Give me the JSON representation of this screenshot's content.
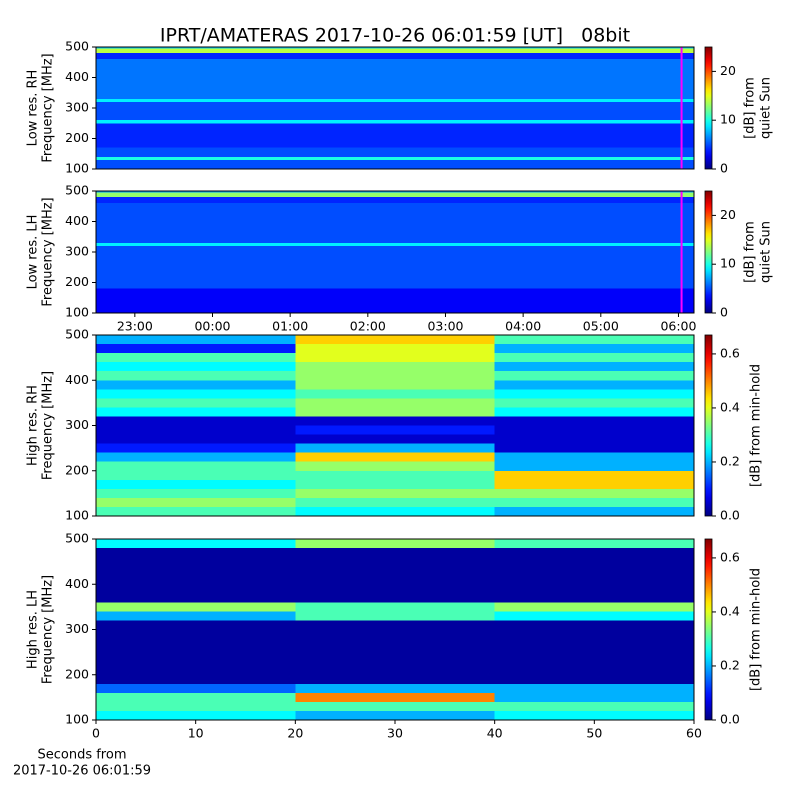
{
  "chart_data": [
    {
      "type": "heatmap",
      "title": "IPRT/AMATERAS 2017-10-26 06:01:59 [UT]   08bit",
      "ylabel": [
        "Low res. RH",
        "Frequency [MHz]"
      ],
      "xlim": [
        22.5,
        30.2
      ],
      "ylim": [
        100,
        500
      ],
      "yticks": [
        100,
        200,
        300,
        400,
        500
      ],
      "x_edges": [
        22.5,
        30.2
      ],
      "y_edges": [
        100,
        130,
        140,
        170,
        250,
        260,
        320,
        330,
        460,
        480,
        495,
        500
      ],
      "z": [
        [
          5
        ],
        [
          10
        ],
        [
          5
        ],
        [
          4
        ],
        [
          9
        ],
        [
          5
        ],
        [
          9
        ],
        [
          6
        ],
        [
          4
        ],
        [
          14
        ],
        [
          8
        ]
      ],
      "colormap": "jet",
      "clim": [
        0,
        25
      ],
      "cticks": [
        0,
        10,
        20
      ],
      "clabel": [
        "[dB] from",
        "quiet Sun"
      ],
      "marker_x": 30.04,
      "marker_color": "#ff00ff"
    },
    {
      "type": "heatmap",
      "ylabel": [
        "Low res. LH",
        "Frequency [MHz]"
      ],
      "xlim": [
        22.5,
        30.2
      ],
      "ylim": [
        100,
        500
      ],
      "yticks": [
        100,
        200,
        300,
        400,
        500
      ],
      "xticks": [
        {
          "value": 23,
          "label": "23:00"
        },
        {
          "value": 24,
          "label": "00:00"
        },
        {
          "value": 25,
          "label": "01:00"
        },
        {
          "value": 26,
          "label": "02:00"
        },
        {
          "value": 27,
          "label": "03:00"
        },
        {
          "value": 28,
          "label": "04:00"
        },
        {
          "value": 29,
          "label": "05:00"
        },
        {
          "value": 30,
          "label": "06:00"
        }
      ],
      "x_edges": [
        22.5,
        30.2
      ],
      "y_edges": [
        100,
        180,
        320,
        330,
        460,
        480,
        495,
        500
      ],
      "z": [
        [
          3
        ],
        [
          5
        ],
        [
          9
        ],
        [
          5
        ],
        [
          4
        ],
        [
          13
        ],
        [
          7
        ]
      ],
      "colormap": "jet",
      "clim": [
        0,
        25
      ],
      "cticks": [
        0,
        10,
        20
      ],
      "clabel": [
        "[dB] from",
        "quiet Sun"
      ],
      "marker_x": 30.04,
      "marker_color": "#ff00ff"
    },
    {
      "type": "heatmap",
      "ylabel": [
        "High res. RH",
        "Frequency [MHz]"
      ],
      "xlim": [
        0,
        60
      ],
      "ylim": [
        100,
        500
      ],
      "yticks": [
        100,
        200,
        300,
        400,
        500
      ],
      "x_edges": [
        0,
        20,
        40,
        60
      ],
      "y_edges": [
        100,
        120,
        140,
        160,
        180,
        200,
        220,
        240,
        260,
        280,
        300,
        320,
        340,
        360,
        380,
        400,
        420,
        440,
        460,
        480,
        500
      ],
      "z": [
        [
          0.3,
          0.25,
          0.2
        ],
        [
          0.35,
          0.3,
          0.3
        ],
        [
          0.3,
          0.35,
          0.35
        ],
        [
          0.25,
          0.3,
          0.45
        ],
        [
          0.3,
          0.3,
          0.45
        ],
        [
          0.3,
          0.35,
          0.2
        ],
        [
          0.2,
          0.45,
          0.2
        ],
        [
          0.1,
          0.2,
          0.05
        ],
        [
          0.05,
          0.05,
          0.05
        ],
        [
          0.05,
          0.1,
          0.05
        ],
        [
          0.05,
          0.05,
          0.05
        ],
        [
          0.25,
          0.35,
          0.25
        ],
        [
          0.3,
          0.35,
          0.3
        ],
        [
          0.25,
          0.3,
          0.25
        ],
        [
          0.2,
          0.35,
          0.2
        ],
        [
          0.3,
          0.35,
          0.3
        ],
        [
          0.25,
          0.35,
          0.2
        ],
        [
          0.3,
          0.4,
          0.3
        ],
        [
          0.1,
          0.4,
          0.2
        ],
        [
          0.2,
          0.45,
          0.3
        ]
      ],
      "colormap": "jet",
      "clim": [
        0,
        0.67
      ],
      "cticks": [
        {
          "value": 0,
          "label": "0.0"
        },
        {
          "value": 0.2,
          "label": "0.2"
        },
        {
          "value": 0.4,
          "label": "0.4"
        },
        {
          "value": 0.6,
          "label": "0.6"
        }
      ],
      "clabel": [
        "[dB] from min-hold"
      ]
    },
    {
      "type": "heatmap",
      "ylabel": [
        "High res. LH",
        "Frequency [MHz]"
      ],
      "xlabel": [
        "Seconds from",
        "2017-10-26 06:01:59"
      ],
      "xlim": [
        0,
        60
      ],
      "ylim": [
        100,
        500
      ],
      "yticks": [
        100,
        200,
        300,
        400,
        500
      ],
      "xticks": [
        0,
        10,
        20,
        30,
        40,
        50,
        60
      ],
      "x_edges": [
        0,
        20,
        40,
        60
      ],
      "y_edges": [
        100,
        120,
        140,
        160,
        180,
        200,
        220,
        240,
        260,
        280,
        300,
        320,
        340,
        360,
        380,
        400,
        420,
        440,
        460,
        480,
        500
      ],
      "z": [
        [
          0.25,
          0.2,
          0.25
        ],
        [
          0.3,
          0.3,
          0.3
        ],
        [
          0.3,
          0.5,
          0.2
        ],
        [
          0.15,
          0.2,
          0.2
        ],
        [
          0.02,
          0.02,
          0.02
        ],
        [
          0.02,
          0.02,
          0.02
        ],
        [
          0.02,
          0.02,
          0.02
        ],
        [
          0.02,
          0.02,
          0.02
        ],
        [
          0.02,
          0.02,
          0.02
        ],
        [
          0.02,
          0.02,
          0.02
        ],
        [
          0.02,
          0.02,
          0.02
        ],
        [
          0.2,
          0.3,
          0.25
        ],
        [
          0.35,
          0.3,
          0.35
        ],
        [
          0.02,
          0.02,
          0.02
        ],
        [
          0.02,
          0.02,
          0.02
        ],
        [
          0.02,
          0.02,
          0.02
        ],
        [
          0.02,
          0.02,
          0.02
        ],
        [
          0.02,
          0.02,
          0.02
        ],
        [
          0.02,
          0.02,
          0.02
        ],
        [
          0.25,
          0.35,
          0.3
        ]
      ],
      "colormap": "jet",
      "clim": [
        0,
        0.67
      ],
      "cticks": [
        {
          "value": 0,
          "label": "0.0"
        },
        {
          "value": 0.2,
          "label": "0.2"
        },
        {
          "value": 0.4,
          "label": "0.4"
        },
        {
          "value": 0.6,
          "label": "0.6"
        }
      ],
      "clabel": [
        "[dB] from min-hold"
      ]
    }
  ]
}
